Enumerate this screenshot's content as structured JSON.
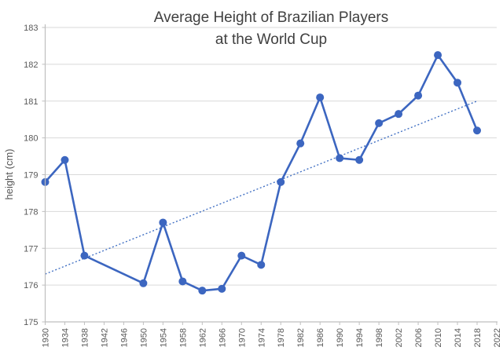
{
  "chart_data": {
    "type": "line",
    "title_line1": "Average Height of Brazilian Players",
    "title_line2": "at the World Cup",
    "xlabel": "",
    "ylabel": "height (cm)",
    "ylim": [
      175,
      183
    ],
    "ytick_step": 1,
    "xlim": [
      1930,
      2022
    ],
    "xticks": [
      1930,
      1934,
      1938,
      1942,
      1946,
      1950,
      1954,
      1958,
      1962,
      1966,
      1970,
      1974,
      1978,
      1982,
      1986,
      1990,
      1994,
      1998,
      2002,
      2006,
      2010,
      2014,
      2018,
      2022
    ],
    "grid": "horizontal",
    "legend_position": "none",
    "series": [
      {
        "name": "average height (cm)",
        "marker": "circle",
        "points": [
          {
            "year": 1930,
            "value": 178.8
          },
          {
            "year": 1934,
            "value": 179.4
          },
          {
            "year": 1938,
            "value": 176.8
          },
          {
            "year": 1950,
            "value": 176.05
          },
          {
            "year": 1954,
            "value": 177.7
          },
          {
            "year": 1958,
            "value": 176.1
          },
          {
            "year": 1962,
            "value": 175.85
          },
          {
            "year": 1966,
            "value": 175.9
          },
          {
            "year": 1970,
            "value": 176.8
          },
          {
            "year": 1974,
            "value": 176.55
          },
          {
            "year": 1978,
            "value": 178.8
          },
          {
            "year": 1982,
            "value": 179.85
          },
          {
            "year": 1986,
            "value": 181.1
          },
          {
            "year": 1990,
            "value": 179.45
          },
          {
            "year": 1994,
            "value": 179.4
          },
          {
            "year": 1998,
            "value": 180.4
          },
          {
            "year": 2002,
            "value": 180.65
          },
          {
            "year": 2006,
            "value": 181.15
          },
          {
            "year": 2010,
            "value": 182.25
          },
          {
            "year": 2014,
            "value": 181.5
          },
          {
            "year": 2018,
            "value": 180.2
          }
        ]
      }
    ],
    "trendline": {
      "style": "dotted",
      "x1": 1930,
      "y1": 176.3,
      "x2": 2018,
      "y2": 181.0
    },
    "colors": {
      "line": "#3c66c0",
      "marker": "#3c66c0",
      "trend": "#4472c4",
      "grid": "#d9d9d9",
      "axis": "#bfbfbf",
      "tick_text": "#595959",
      "title_text": "#404040"
    }
  }
}
